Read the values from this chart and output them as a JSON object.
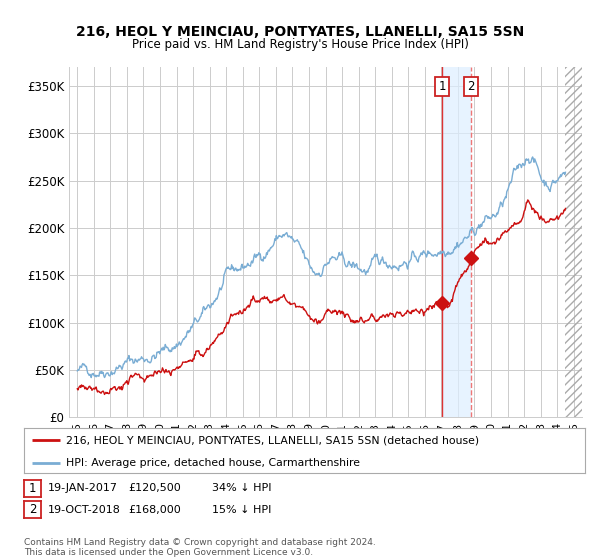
{
  "title": "216, HEOL Y MEINCIAU, PONTYATES, LLANELLI, SA15 5SN",
  "subtitle": "Price paid vs. HM Land Registry's House Price Index (HPI)",
  "legend_line1": "216, HEOL Y MEINCIAU, PONTYATES, LLANELLI, SA15 5SN (detached house)",
  "legend_line2": "HPI: Average price, detached house, Carmarthenshire",
  "transaction1_date": "19-JAN-2017",
  "transaction1_price": "£120,500",
  "transaction1_hpi": "34% ↓ HPI",
  "transaction2_date": "19-OCT-2018",
  "transaction2_price": "£168,000",
  "transaction2_hpi": "15% ↓ HPI",
  "footer": "Contains HM Land Registry data © Crown copyright and database right 2024.\nThis data is licensed under the Open Government Licence v3.0.",
  "hpi_color": "#7aadd4",
  "price_color": "#cc1111",
  "marker_color": "#cc1111",
  "vline1_color": "#dd3333",
  "vline2_color": "#ee7777",
  "shade_color": "#ddeeff",
  "background_color": "#ffffff",
  "grid_color": "#cccccc",
  "ylim": [
    0,
    370000
  ],
  "yticks": [
    0,
    50000,
    100000,
    150000,
    200000,
    250000,
    300000,
    350000
  ],
  "ytick_labels": [
    "£0",
    "£50K",
    "£100K",
    "£150K",
    "£200K",
    "£250K",
    "£300K",
    "£350K"
  ],
  "transaction1_x": 2017.05,
  "transaction1_y": 120500,
  "transaction2_x": 2018.8,
  "transaction2_y": 168000,
  "data_end_x": 2024.5,
  "xlim_start": 1994.5,
  "xlim_end": 2025.5
}
